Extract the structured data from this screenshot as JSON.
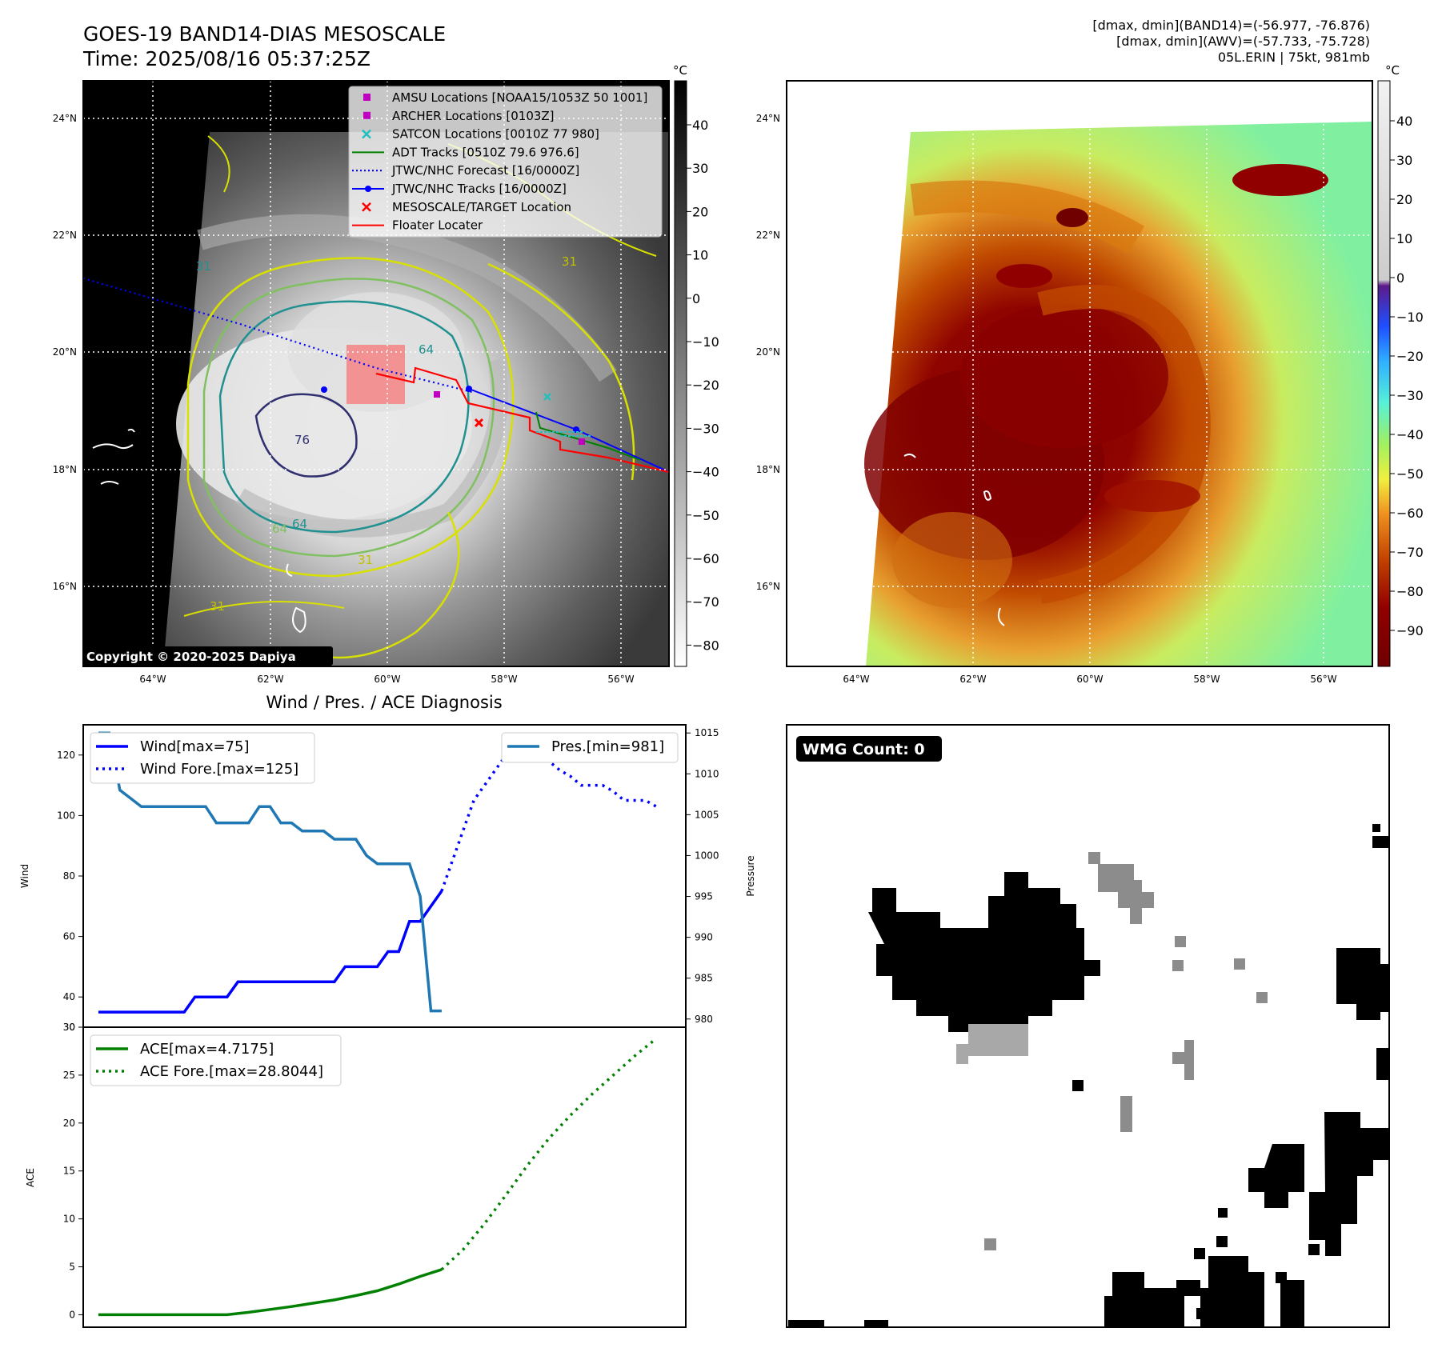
{
  "header": {
    "title_line1": "GOES-19 BAND14-DIAS MESOSCALE",
    "title_line2": "Time: 2025/08/16 05:37:25Z",
    "info_line1": "[dmax, dmin](BAND14)=(-56.977, -76.876)",
    "info_line2": "[dmax, dmin](AWV)=(-57.733, -75.728)",
    "info_line3": "05L.ERIN | 75kt, 981mb"
  },
  "map": {
    "lat_labels": [
      "24°N",
      "22°N",
      "20°N",
      "18°N",
      "16°N"
    ],
    "lon_labels": [
      "64°W",
      "62°W",
      "60°W",
      "58°W",
      "56°W"
    ],
    "copyright": "Copyright © 2020-2025 Dapiya",
    "contour_labels": [
      "31",
      "64",
      "76",
      "64",
      "31",
      "31",
      "64",
      "31"
    ],
    "legend": [
      {
        "label": "AMSU Locations [NOAA15/1053Z 50 1001]",
        "color": "#c000c0",
        "marker": "square"
      },
      {
        "label": "ARCHER Locations [0103Z]",
        "color": "#c000c0",
        "marker": "square"
      },
      {
        "label": "SATCON Locations [0010Z 77 980]",
        "color": "#20c0c0",
        "marker": "x"
      },
      {
        "label": "ADT Tracks [0510Z 79.6 976.6]",
        "color": "#008000",
        "marker": "line"
      },
      {
        "label": "JTWC/NHC Forecast [16/0000Z]",
        "color": "#0000ff",
        "marker": "dotted"
      },
      {
        "label": "JTWC/NHC Tracks [16/0000Z]",
        "color": "#0000ff",
        "marker": "line-dot"
      },
      {
        "label": "MESOSCALE/TARGET Location",
        "color": "#ff0000",
        "marker": "x"
      },
      {
        "label": "Floater Locater",
        "color": "#ff0000",
        "marker": "line"
      }
    ],
    "left_colorbar": {
      "unit": "°C",
      "ticks": [
        "40",
        "30",
        "20",
        "10",
        "0",
        "−10",
        "−20",
        "−30",
        "−40",
        "−50",
        "−60",
        "−70",
        "−80"
      ]
    },
    "right_colorbar": {
      "unit": "°C",
      "ticks": [
        "40",
        "30",
        "20",
        "10",
        "0",
        "−10",
        "−20",
        "−30",
        "−40",
        "−50",
        "−60",
        "−70",
        "−80",
        "−90"
      ]
    }
  },
  "chart_data": [
    {
      "type": "line",
      "title": "Wind / Pres. / ACE Diagnosis",
      "xlabel": "",
      "ylabel": "Wind",
      "ylabel_right": "Pressure",
      "ylim": [
        30,
        130
      ],
      "ylim_right": [
        979,
        1016
      ],
      "yticks": [
        30,
        40,
        60,
        80,
        100,
        120
      ],
      "yticks_right": [
        980,
        985,
        990,
        995,
        1000,
        1005,
        1010,
        1015
      ],
      "x": [
        0,
        1,
        2,
        3,
        4,
        5,
        6,
        7,
        8,
        9,
        10,
        11,
        12,
        13,
        14,
        15,
        16,
        17,
        18,
        19,
        20,
        21,
        22,
        23,
        24,
        25,
        26,
        27,
        28,
        29,
        30,
        31,
        32,
        33,
        34,
        35,
        36,
        37,
        38,
        39,
        40,
        41,
        42,
        43,
        44,
        45,
        46,
        47,
        48,
        49,
        50,
        51,
        52
      ],
      "series": [
        {
          "name": "Wind[max=75]",
          "color": "#0000ff",
          "style": "solid",
          "x": [
            0,
            1,
            2,
            3,
            4,
            5,
            6,
            7,
            8,
            9,
            10,
            11,
            12,
            13,
            14,
            15,
            16,
            17,
            18,
            19,
            20,
            21,
            22,
            23,
            24,
            25,
            26,
            27,
            28,
            29,
            30,
            31,
            32
          ],
          "values": [
            35,
            35,
            35,
            35,
            35,
            35,
            35,
            35,
            35,
            40,
            40,
            40,
            40,
            45,
            45,
            45,
            45,
            45,
            45,
            45,
            45,
            45,
            45,
            50,
            50,
            50,
            50,
            55,
            55,
            65,
            65,
            70,
            75
          ]
        },
        {
          "name": "Wind Fore.[max=125]",
          "color": "#0000ff",
          "style": "dotted",
          "x": [
            32,
            33,
            34,
            35,
            36,
            37,
            38,
            39,
            40,
            41,
            42,
            43,
            44,
            45,
            46,
            47,
            48,
            49,
            50,
            51,
            52
          ],
          "values": [
            75,
            85,
            95,
            105,
            110,
            115,
            120,
            125,
            125,
            120,
            118,
            115,
            113,
            110,
            110,
            110,
            108,
            105,
            105,
            105,
            103
          ]
        },
        {
          "name": "Pres.[min=981]",
          "color": "#1f77b4",
          "style": "solid",
          "axis": "right",
          "x": [
            0,
            1,
            2,
            3,
            4,
            5,
            6,
            7,
            8,
            9,
            10,
            11,
            12,
            13,
            14,
            15,
            16,
            17,
            18,
            19,
            20,
            21,
            22,
            23,
            24,
            25,
            26,
            27,
            28,
            29,
            30,
            31,
            32
          ],
          "values": [
            1015,
            1015,
            1008,
            1007,
            1006,
            1006,
            1006,
            1006,
            1006,
            1006,
            1006,
            1004,
            1004,
            1004,
            1004,
            1006,
            1006,
            1004,
            1004,
            1003,
            1003,
            1003,
            1002,
            1002,
            1002,
            1000,
            999,
            999,
            999,
            999,
            995,
            981,
            981
          ]
        }
      ]
    },
    {
      "type": "line",
      "title": "",
      "xlabel": "",
      "ylabel": "ACE",
      "ylim": [
        -1.3,
        30
      ],
      "yticks": [
        0,
        5,
        10,
        15,
        20,
        25,
        30
      ],
      "ytick_labels": [
        "0",
        "5",
        "10",
        "15",
        "20",
        "25",
        "30"
      ],
      "series": [
        {
          "name": "ACE[max=4.7175]",
          "color": "#008000",
          "style": "solid",
          "x": [
            0,
            2,
            4,
            6,
            8,
            10,
            12,
            14,
            16,
            18,
            20,
            22,
            24,
            26,
            28,
            30,
            32
          ],
          "values": [
            0,
            0,
            0,
            0,
            0,
            0,
            0,
            0.25,
            0.55,
            0.85,
            1.2,
            1.55,
            2.0,
            2.5,
            3.2,
            4.0,
            4.7175
          ]
        },
        {
          "name": "ACE Fore.[max=28.8044]",
          "color": "#008000",
          "style": "dotted",
          "x": [
            32,
            34,
            36,
            38,
            40,
            42,
            44,
            46,
            48,
            50,
            52
          ],
          "values": [
            4.7175,
            6.8,
            9.5,
            12.5,
            15.6,
            18.4,
            20.8,
            23.0,
            25.0,
            27.0,
            28.8044
          ]
        }
      ]
    }
  ],
  "wmg": {
    "badge": "WMG Count: 0"
  }
}
